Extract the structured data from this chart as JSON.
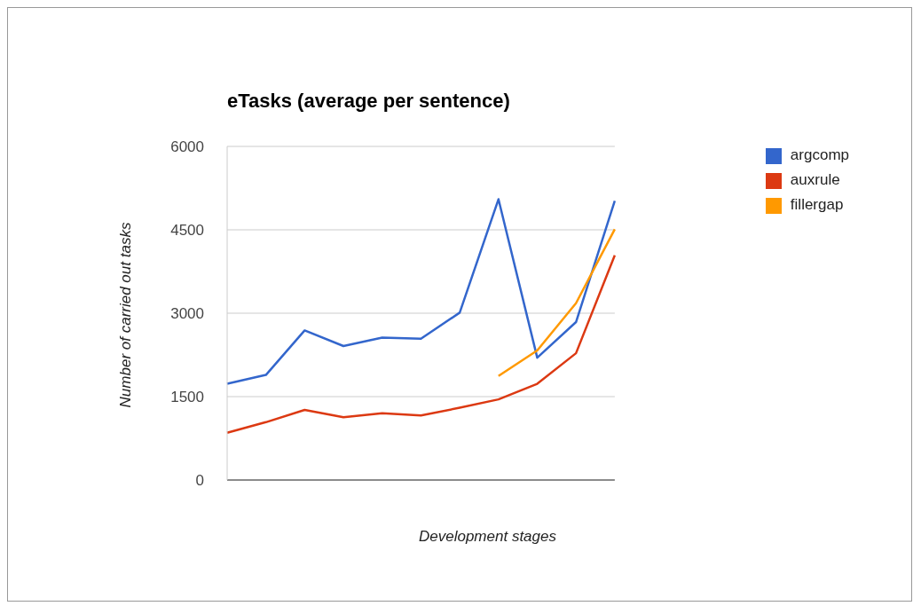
{
  "chart_data": {
    "type": "line",
    "title": "eTasks (average per sentence)",
    "xlabel": "Development stages",
    "ylabel": "Number of carried out tasks",
    "categories": [
      null,
      null,
      null,
      null,
      null,
      null,
      null,
      null,
      null,
      null,
      null
    ],
    "series": [
      {
        "name": "argcomp",
        "color": "#3366cc",
        "values": [
          1730,
          1890,
          2690,
          2410,
          2560,
          2540,
          3010,
          5050,
          2200,
          2840,
          5020
        ]
      },
      {
        "name": "auxrule",
        "color": "#dc3912",
        "values": [
          850,
          1040,
          1260,
          1130,
          1200,
          1160,
          1300,
          1450,
          1730,
          2280,
          4040
        ]
      },
      {
        "name": "fillergap",
        "color": "#ff9900",
        "values": [
          null,
          null,
          null,
          null,
          null,
          null,
          null,
          1870,
          2330,
          3180,
          4510
        ]
      }
    ],
    "ylim": [
      0,
      6000
    ],
    "yticks": [
      0,
      1500,
      3000,
      4500,
      6000
    ],
    "grid": "y",
    "legend": "right",
    "marker": "none",
    "line_style": "solid"
  }
}
